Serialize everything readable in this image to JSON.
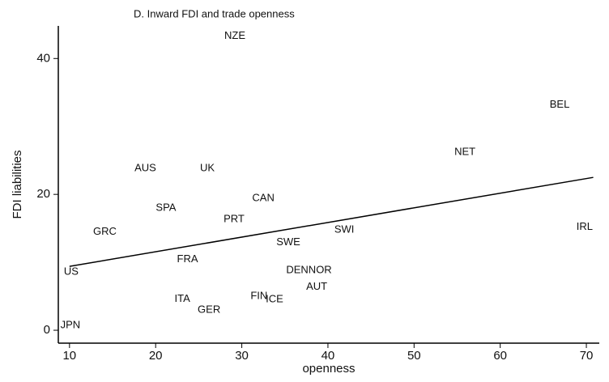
{
  "chart_data": {
    "type": "scatter",
    "title": "D. Inward FDI and trade openness",
    "x_label": "openness",
    "y_label": "FDI liabilities",
    "labels": [
      "NZE",
      "BEL",
      "NET",
      "AUS",
      "UK",
      "CAN",
      "SPA",
      "PRT",
      "GRC",
      "SWI",
      "IRL",
      "SWE",
      "FRA",
      "US",
      "DENNOR",
      "AUT",
      "FIN",
      "ICE",
      "ITA",
      "GER",
      "JPN"
    ],
    "x": [
      29.2,
      66.9,
      55.9,
      18.8,
      26.0,
      32.5,
      21.2,
      29.1,
      14.1,
      41.9,
      69.8,
      35.4,
      23.7,
      10.2,
      37.8,
      38.7,
      32.0,
      33.8,
      23.1,
      26.2,
      10.1
    ],
    "values": [
      43.3,
      33.2,
      26.2,
      23.8,
      23.8,
      19.4,
      18.0,
      16.3,
      14.5,
      14.8,
      15.2,
      12.9,
      10.4,
      8.6,
      8.8,
      6.4,
      5.0,
      4.5,
      4.6,
      3.0,
      0.7
    ],
    "fit_line": {
      "x": [
        10,
        70.8
      ],
      "y": [
        9.4,
        22.5
      ]
    },
    "xlim": [
      8.7,
      71.5
    ],
    "ylim": [
      -1.9,
      44.8
    ],
    "xticks": [
      10,
      20,
      30,
      40,
      50,
      60,
      70
    ],
    "yticks": [
      0,
      20,
      40
    ]
  }
}
